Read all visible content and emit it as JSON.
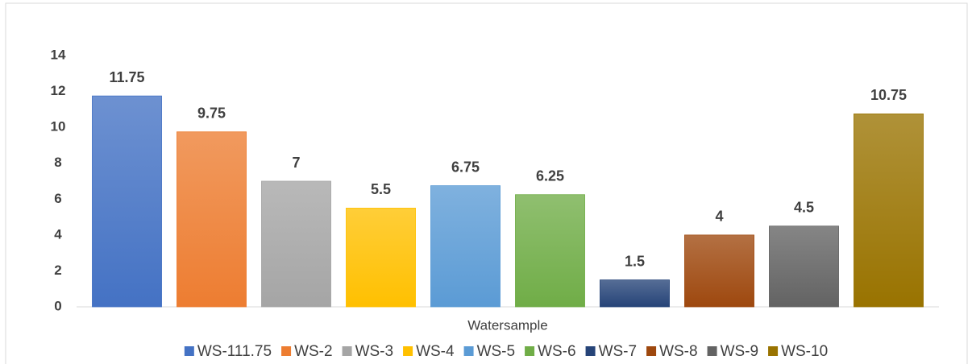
{
  "chart_data": {
    "type": "bar",
    "categories": [
      "Watersample"
    ],
    "series": [
      {
        "name": "WS-111.75",
        "color": "#4472c4",
        "values": [
          11.75
        ]
      },
      {
        "name": "WS-2",
        "color": "#ed7d31",
        "values": [
          9.75
        ]
      },
      {
        "name": "WS-3",
        "color": "#a5a5a5",
        "values": [
          7
        ]
      },
      {
        "name": "WS-4",
        "color": "#ffc000",
        "values": [
          5.5
        ]
      },
      {
        "name": "WS-5",
        "color": "#5b9bd5",
        "values": [
          6.75
        ]
      },
      {
        "name": "WS-6",
        "color": "#70ad47",
        "values": [
          6.25
        ]
      },
      {
        "name": "WS-7",
        "color": "#264478",
        "values": [
          1.5
        ]
      },
      {
        "name": "WS-8",
        "color": "#9e480e",
        "values": [
          4
        ]
      },
      {
        "name": "WS-9",
        "color": "#636363",
        "values": [
          4.5
        ]
      },
      {
        "name": "WS-10",
        "color": "#997300",
        "values": [
          10.75
        ]
      }
    ],
    "ylim": [
      0,
      14
    ],
    "yticks": [
      0,
      2,
      4,
      6,
      8,
      10,
      12,
      14
    ],
    "grid": false,
    "data_labels": true,
    "legend": "bottom"
  }
}
